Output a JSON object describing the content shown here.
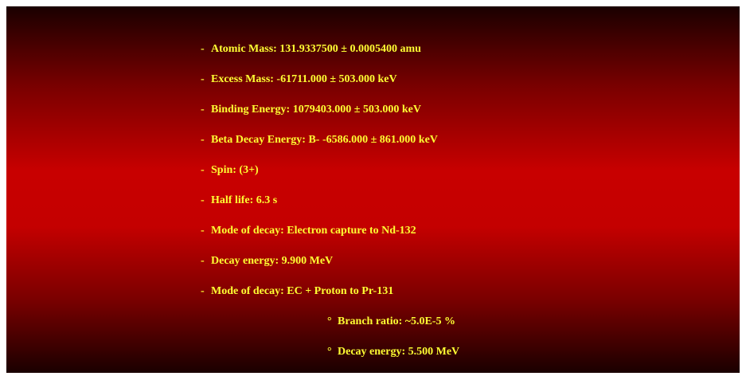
{
  "items": [
    {
      "marker": "-",
      "text": "Atomic Mass: 131.9337500 ± 0.0005400 amu"
    },
    {
      "marker": "-",
      "text": "Excess Mass: -61711.000 ± 503.000 keV"
    },
    {
      "marker": "-",
      "text": "Binding Energy: 1079403.000 ± 503.000 keV"
    },
    {
      "marker": "-",
      "text": "Beta Decay Energy: B- -6586.000 ± 861.000 keV"
    },
    {
      "marker": "-",
      "text": "Spin: (3+)"
    },
    {
      "marker": "-",
      "text": "Half life: 6.3 s"
    },
    {
      "marker": "-",
      "text": "Mode of decay: Electron capture to Nd-132"
    },
    {
      "marker": "-",
      "text": "Decay energy: 9.900 MeV"
    },
    {
      "marker": "-",
      "text": "Mode of decay: EC + Proton to Pr-131"
    }
  ],
  "subitems": [
    {
      "marker": "°",
      "text": "Branch ratio: ~5.0E-5 %"
    },
    {
      "marker": "°",
      "text": "Decay energy: 5.500 MeV"
    }
  ],
  "colors": {
    "text": "#ffff33",
    "background_center": "#c80000",
    "background_edge": "#1a0000"
  }
}
